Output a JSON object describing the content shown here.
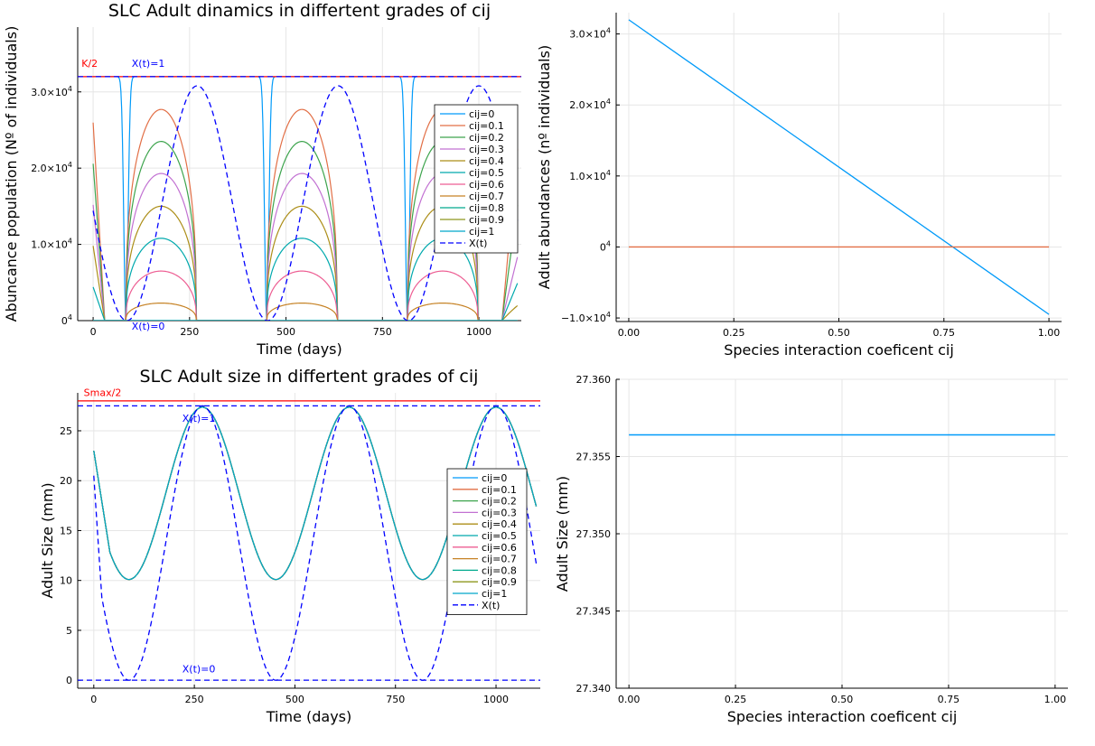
{
  "chart_data": [
    {
      "type": "line",
      "title": "SLC Adult dinamics in differtent grades of cij",
      "xlabel": "Time (days)",
      "ylabel": "Abuncance population (Nº of individuals)",
      "xlim": [
        -40,
        1110
      ],
      "ylim": [
        0,
        38500
      ],
      "x_ticks": [
        0,
        250,
        500,
        750,
        1000
      ],
      "x_tick_labels": [
        "0",
        "250",
        "500",
        "750",
        "1000"
      ],
      "y_ticks": [
        0,
        10000,
        20000,
        30000
      ],
      "y_tick_labels": [
        "0",
        "1.0×10",
        "2.0×10",
        "3.0×10"
      ],
      "y_tick_exponent": "4",
      "grid": true,
      "legend_position": "right",
      "period_days": 365,
      "series": [
        {
          "name": "cij=0",
          "color": "#009af9",
          "peak": 32000,
          "floor_start": 32000,
          "floor_end": 32000,
          "style": "solid"
        },
        {
          "name": "cij=0.1",
          "color": "#e26f46",
          "peak": 27700,
          "floor_start": 26500,
          "floor_end": 23000,
          "style": "solid"
        },
        {
          "name": "cij=0.2",
          "color": "#3da44d",
          "peak": 23500,
          "floor_start": 21000,
          "floor_end": 15500,
          "style": "solid"
        },
        {
          "name": "cij=0.3",
          "color": "#c271d2",
          "peak": 19300,
          "floor_start": 15500,
          "floor_end": 8500,
          "style": "solid"
        },
        {
          "name": "cij=0.4",
          "color": "#ac8e18",
          "peak": 15000,
          "floor_start": 10000,
          "floor_end": 2000,
          "style": "solid"
        },
        {
          "name": "cij=0.5",
          "color": "#00a9ad",
          "peak": 10800,
          "floor_start": 4500,
          "floor_end": 5000,
          "style": "solid"
        },
        {
          "name": "cij=0.6",
          "color": "#ed5e93",
          "peak": 6500,
          "floor_start": 0,
          "floor_end": 0,
          "style": "solid"
        },
        {
          "name": "cij=0.7",
          "color": "#c68225",
          "peak": 2300,
          "floor_start": 0,
          "floor_end": 0,
          "style": "solid"
        },
        {
          "name": "cij=0.8",
          "color": "#00a98d",
          "peak": 0,
          "floor_start": 0,
          "floor_end": 0,
          "style": "solid"
        },
        {
          "name": "cij=0.9",
          "color": "#8e971e",
          "peak": 0,
          "floor_start": 0,
          "floor_end": 0,
          "style": "solid"
        },
        {
          "name": "cij=1",
          "color": "#00a8cb",
          "peak": 0,
          "floor_start": 0,
          "floor_end": 0,
          "style": "solid"
        },
        {
          "name": "X(t)",
          "color": "#0000ff",
          "peak": 30800,
          "floor_start": 23000,
          "floor_end": 23000,
          "style": "dashed"
        }
      ],
      "hlines": [
        {
          "y": 32000,
          "color": "#ff0000",
          "style": "solid"
        },
        {
          "y": 32000,
          "color": "#0000ff",
          "style": "dashed"
        }
      ],
      "annotations": [
        {
          "text": "K/2",
          "x": -30,
          "y": 33300,
          "color": "#ff0000"
        },
        {
          "text": "X(t)=1",
          "x": 100,
          "y": 33300,
          "color": "#0000ff"
        },
        {
          "text": "X(t)=0",
          "x": 100,
          "y": -1200,
          "color": "#0000ff"
        }
      ]
    },
    {
      "type": "line",
      "title": "",
      "xlabel": "Species interaction coeficent cij",
      "ylabel": "Adult abundances (nº individuals)",
      "xlim": [
        -0.03,
        1.03
      ],
      "ylim": [
        -10500,
        33000
      ],
      "x_ticks": [
        0,
        0.25,
        0.5,
        0.75,
        1
      ],
      "x_tick_labels": [
        "0.00",
        "0.25",
        "0.50",
        "0.75",
        "1.00"
      ],
      "y_ticks": [
        -10000,
        0,
        10000,
        20000,
        30000
      ],
      "y_tick_labels": [
        "−1.0×10",
        "0",
        "1.0×10",
        "2.0×10",
        "3.0×10"
      ],
      "y_tick_exponent": "4",
      "grid": true,
      "series": [
        {
          "color": "#009af9",
          "x": [
            0,
            1
          ],
          "y": [
            32000,
            -9500
          ]
        },
        {
          "color": "#e26f46",
          "x": [
            0,
            1
          ],
          "y": [
            0,
            0
          ]
        }
      ]
    },
    {
      "type": "line",
      "title": "SLC Adult size in differtent grades of cij",
      "xlabel": "Time (days)",
      "ylabel": "Adult Size (mm)",
      "xlim": [
        -40,
        1110
      ],
      "ylim": [
        -0.8,
        28.8
      ],
      "x_ticks": [
        0,
        250,
        500,
        750,
        1000
      ],
      "x_tick_labels": [
        "0",
        "250",
        "500",
        "750",
        "1000"
      ],
      "y_ticks": [
        0,
        5,
        10,
        15,
        20,
        25
      ],
      "y_tick_labels": [
        "0",
        "5",
        "10",
        "15",
        "20",
        "25"
      ],
      "grid": true,
      "legend_position": "right",
      "size_curve": {
        "start": 23,
        "min": 10.1,
        "max": 27.36,
        "min_days": [
          85,
          450,
          815
        ],
        "max_days": [
          270,
          635,
          1000
        ]
      },
      "xt_curve": {
        "start": 20.5,
        "min": 0,
        "max": 27.5,
        "min_days": [
          88,
          453,
          818
        ],
        "max_days": [
          270,
          635,
          1000
        ]
      },
      "series": [
        {
          "name": "cij=0",
          "color": "#009af9",
          "style": "solid"
        },
        {
          "name": "cij=0.1",
          "color": "#e26f46",
          "style": "solid"
        },
        {
          "name": "cij=0.2",
          "color": "#3da44d",
          "style": "solid"
        },
        {
          "name": "cij=0.3",
          "color": "#c271d2",
          "style": "solid"
        },
        {
          "name": "cij=0.4",
          "color": "#ac8e18",
          "style": "solid"
        },
        {
          "name": "cij=0.5",
          "color": "#00a9ad",
          "style": "solid"
        },
        {
          "name": "cij=0.6",
          "color": "#ed5e93",
          "style": "solid"
        },
        {
          "name": "cij=0.7",
          "color": "#c68225",
          "style": "solid"
        },
        {
          "name": "cij=0.8",
          "color": "#00a98d",
          "style": "solid"
        },
        {
          "name": "cij=0.9",
          "color": "#8e971e",
          "style": "solid"
        },
        {
          "name": "cij=1",
          "color": "#00a8cb",
          "style": "solid"
        },
        {
          "name": "X(t)",
          "color": "#0000ff",
          "style": "dashed"
        }
      ],
      "hlines": [
        {
          "y": 28,
          "color": "#ff0000",
          "style": "solid"
        },
        {
          "y": 27.5,
          "color": "#0000ff",
          "style": "dashed"
        },
        {
          "y": 0,
          "color": "#0000ff",
          "style": "dashed"
        }
      ],
      "annotations": [
        {
          "text": "Smax/2",
          "x": -25,
          "y": 28.5,
          "color": "#ff0000"
        },
        {
          "text": "X(t)=1",
          "x": 220,
          "y": 25.9,
          "color": "#0000ff"
        },
        {
          "text": "X(t)=0",
          "x": 220,
          "y": 0.8,
          "color": "#0000ff"
        }
      ]
    },
    {
      "type": "line",
      "title": "",
      "xlabel": "Species interaction coeficent cij",
      "ylabel": "Adult Size (mm)",
      "xlim": [
        -0.03,
        1.03
      ],
      "ylim": [
        27.34,
        27.36
      ],
      "x_ticks": [
        0,
        0.25,
        0.5,
        0.75,
        1
      ],
      "x_tick_labels": [
        "0.00",
        "0.25",
        "0.50",
        "0.75",
        "1.00"
      ],
      "y_ticks": [
        27.34,
        27.345,
        27.35,
        27.355,
        27.36
      ],
      "y_tick_labels": [
        "27.340",
        "27.345",
        "27.350",
        "27.355",
        "27.360"
      ],
      "grid": true,
      "series": [
        {
          "color": "#009af9",
          "x": [
            0,
            1
          ],
          "y": [
            27.3564,
            27.3564
          ]
        }
      ]
    }
  ]
}
